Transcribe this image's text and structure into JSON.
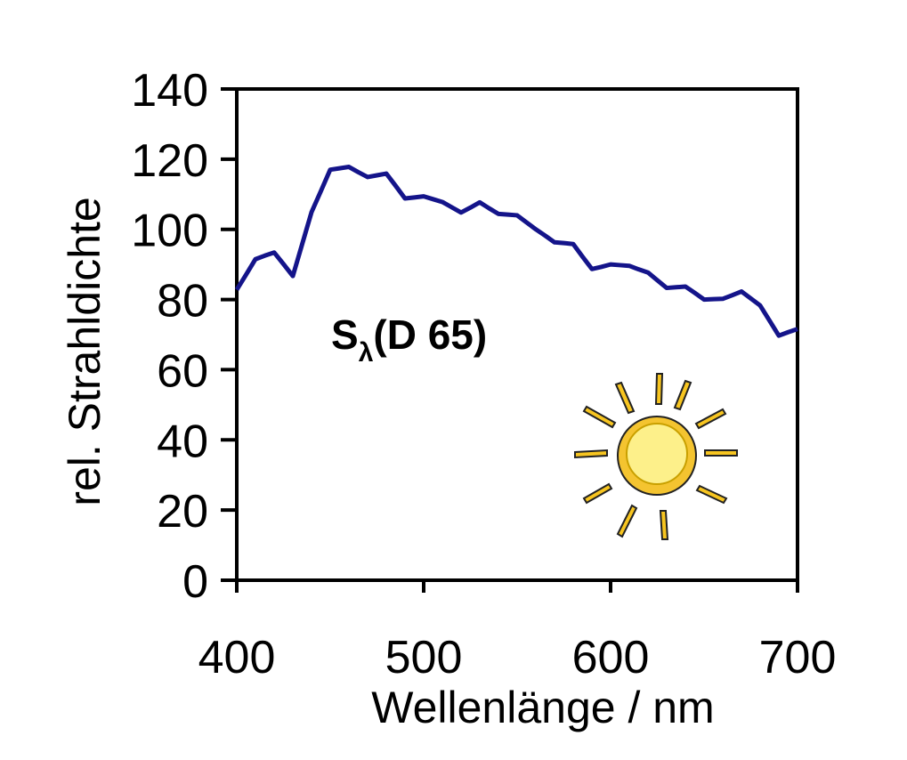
{
  "chart_data": {
    "type": "line",
    "x_label": "Wellenlänge / nm",
    "y_label": "rel. Strahldichte",
    "annotation": {
      "main": "S",
      "sub": "λ",
      "rest": "(D 65)"
    },
    "xlim": [
      400,
      700
    ],
    "xticks": [
      400,
      500,
      600,
      700
    ],
    "ylim": [
      0,
      140
    ],
    "yticks": [
      0,
      20,
      40,
      60,
      80,
      100,
      120,
      140
    ],
    "series": [
      {
        "color": "#14148a",
        "x": [
          400,
          405,
          410,
          415,
          420,
          425,
          430,
          435,
          440,
          445,
          450,
          455,
          460,
          465,
          470,
          475,
          480,
          485,
          490,
          495,
          500,
          505,
          510,
          515,
          520,
          525,
          530,
          535,
          540,
          545,
          550,
          555,
          560,
          565,
          570,
          575,
          580,
          585,
          590,
          595,
          600,
          605,
          610,
          615,
          620,
          625,
          630,
          635,
          640,
          645,
          650,
          655,
          660,
          665,
          670,
          675,
          680,
          685,
          690,
          695,
          700
        ],
        "values": [
          82.8,
          87.1,
          91.5,
          92.5,
          93.4,
          90.1,
          86.7,
          95.8,
          104.9,
          110.9,
          117.0,
          117.4,
          117.8,
          116.3,
          114.9,
          115.4,
          115.9,
          112.4,
          108.8,
          109.1,
          109.4,
          108.6,
          107.8,
          106.3,
          104.8,
          106.2,
          107.7,
          106.0,
          104.4,
          104.2,
          104.0,
          102.0,
          100.0,
          98.2,
          96.3,
          96.1,
          95.8,
          92.2,
          88.7,
          89.3,
          90.0,
          89.8,
          89.6,
          88.6,
          87.7,
          85.5,
          83.3,
          83.5,
          83.7,
          81.9,
          80.0,
          80.1,
          80.2,
          81.2,
          82.3,
          80.3,
          78.3,
          74.0,
          69.7,
          70.7,
          71.6
        ]
      }
    ]
  }
}
